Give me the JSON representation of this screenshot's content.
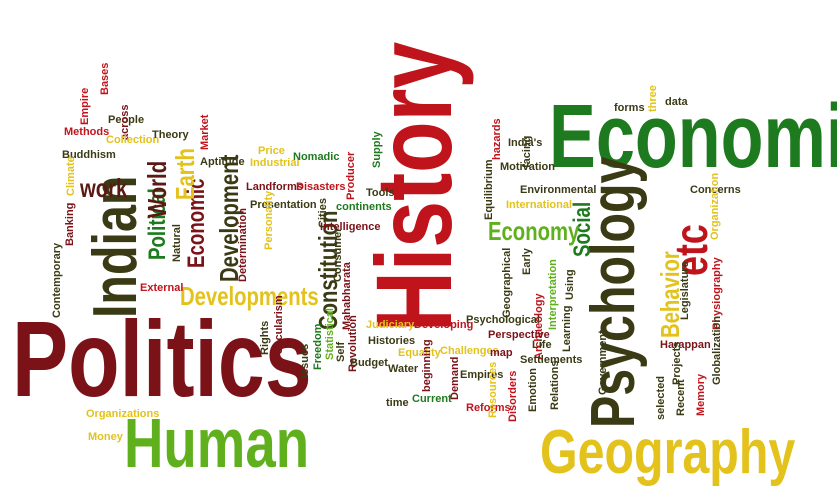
{
  "palette": {
    "dark_red": "#7a1218",
    "red": "#c0141c",
    "green": "#1e7a1e",
    "lime": "#5fb01c",
    "yellow": "#e3c21c",
    "orange": "#d4711c",
    "dark_olive": "#3a3a14",
    "brown": "#5a1a14"
  },
  "words": {
    "history": "History",
    "economics": "Economics",
    "politics": "Politics",
    "human": "Human",
    "geography": "Geography",
    "psychology": "Psychology",
    "indian": "Indian",
    "etc": "etc",
    "behavior": "Behavior",
    "social": "Social",
    "economy": "Economy",
    "developments": "Developments",
    "development": "Development",
    "constitution": "Constitution",
    "economic": "Economic",
    "political": "Political",
    "world": "World",
    "earth": "Earth",
    "work": "work",
    "bases": "Bases",
    "empire": "Empire",
    "people": "People",
    "across": "across",
    "methods": "Methods",
    "collection": "Collection",
    "theory": "Theory",
    "market": "Market",
    "buddhism": "Buddhism",
    "climate": "Climate",
    "aptitude": "Aptitude",
    "price": "Price",
    "industrial": "Industrial",
    "nomadic": "Nomadic",
    "producer": "Producer",
    "supply": "Supply",
    "tools": "Tools",
    "landforms": "Landforms",
    "disasters": "Disasters",
    "presentation": "Presentation",
    "cities": "Cities",
    "continents": "continents",
    "intelligence": "Intelligence",
    "banking": "Banking",
    "natural": "Natural",
    "personality": "Personality",
    "determination": "Determination",
    "consumer": "Consumer",
    "mahabharata": "Mahabharata",
    "contemporary": "Contemporary",
    "external": "External",
    "rights": "Rights",
    "secularism": "Secularism",
    "freedom": "Freedom",
    "statistical": "Statistical",
    "revolution": "Revolution",
    "self": "Self",
    "issues": "issues",
    "histories": "Histories",
    "budget": "Budget",
    "judiciary": "Judiciary",
    "developing": "Developing",
    "psychological": "Psychological",
    "equality": "Equality",
    "challenges": "Challenges",
    "water": "Water",
    "beginning": "beginning",
    "time": "time",
    "current": "Current",
    "demand": "Demand",
    "empires": "Empires",
    "reforms": "Reforms",
    "organizations": "Organizations",
    "money": "Money",
    "forms": "forms",
    "three": "three",
    "data": "data",
    "hazards": "hazards",
    "indias": "India's",
    "facing": "facing",
    "motivation": "Motivation",
    "equilibrium": "Equilibrium",
    "environmental": "Environmental",
    "concerns": "Concerns",
    "international": "International",
    "organization": "Organization",
    "geographical": "Geographical",
    "early": "Early",
    "interpretation": "Interpretation",
    "using": "Using",
    "archaeology": "Archaeology",
    "legislature": "Legislature",
    "physiography": "Physiography",
    "perspective": "Perspective",
    "learning": "Learning",
    "life": "Life",
    "map": "map",
    "settlements": "Settlements",
    "government": "Government",
    "harappan": "Harappan",
    "globalization": "Globalization",
    "projects": "Projects",
    "relations": "Relations",
    "emotion": "Emotion",
    "resources": "Resources",
    "disorders": "Disorders",
    "selected": "selected",
    "recent": "Recent",
    "memory": "Memory"
  }
}
